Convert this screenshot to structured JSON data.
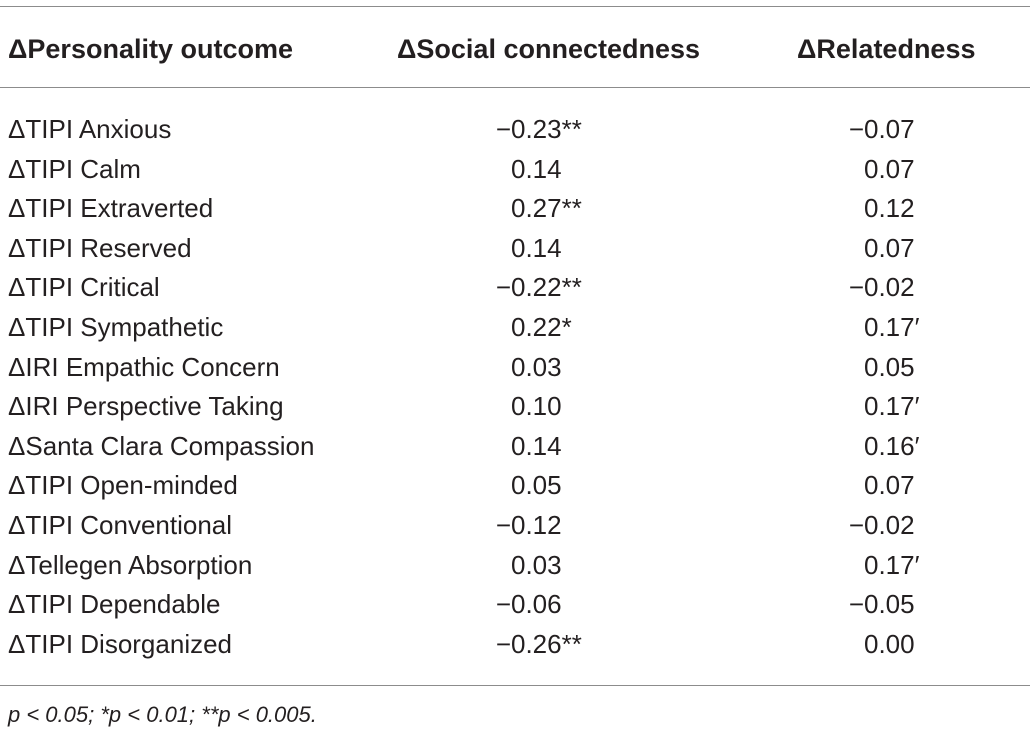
{
  "table": {
    "headers": [
      "ΔPersonality outcome",
      "ΔSocial connectedness",
      "ΔRelatedness"
    ],
    "rows": [
      {
        "outcome": "ΔTIPI Anxious",
        "social": "0.23",
        "social_neg": true,
        "social_mark": "**",
        "relatedness": "0.07",
        "relatedness_neg": true,
        "relatedness_mark": ""
      },
      {
        "outcome": "ΔTIPI Calm",
        "social": "0.14",
        "social_neg": false,
        "social_mark": "",
        "relatedness": "0.07",
        "relatedness_neg": false,
        "relatedness_mark": ""
      },
      {
        "outcome": "ΔTIPI Extraverted",
        "social": "0.27",
        "social_neg": false,
        "social_mark": "**",
        "relatedness": "0.12",
        "relatedness_neg": false,
        "relatedness_mark": ""
      },
      {
        "outcome": "ΔTIPI Reserved",
        "social": "0.14",
        "social_neg": false,
        "social_mark": "",
        "relatedness": "0.07",
        "relatedness_neg": false,
        "relatedness_mark": ""
      },
      {
        "outcome": "ΔTIPI Critical",
        "social": "0.22",
        "social_neg": true,
        "social_mark": "**",
        "relatedness": "0.02",
        "relatedness_neg": true,
        "relatedness_mark": ""
      },
      {
        "outcome": "ΔTIPI Sympathetic",
        "social": "0.22",
        "social_neg": false,
        "social_mark": "*",
        "relatedness": "0.17",
        "relatedness_neg": false,
        "relatedness_mark": "′"
      },
      {
        "outcome": "ΔIRI Empathic Concern",
        "social": "0.03",
        "social_neg": false,
        "social_mark": "",
        "relatedness": "0.05",
        "relatedness_neg": false,
        "relatedness_mark": ""
      },
      {
        "outcome": "ΔIRI Perspective Taking",
        "social": "0.10",
        "social_neg": false,
        "social_mark": "",
        "relatedness": "0.17",
        "relatedness_neg": false,
        "relatedness_mark": "′"
      },
      {
        "outcome": "ΔSanta Clara Compassion",
        "social": "0.14",
        "social_neg": false,
        "social_mark": "",
        "relatedness": "0.16",
        "relatedness_neg": false,
        "relatedness_mark": "′"
      },
      {
        "outcome": "ΔTIPI Open-minded",
        "social": "0.05",
        "social_neg": false,
        "social_mark": "",
        "relatedness": "0.07",
        "relatedness_neg": false,
        "relatedness_mark": ""
      },
      {
        "outcome": "ΔTIPI Conventional",
        "social": "0.12",
        "social_neg": true,
        "social_mark": "",
        "relatedness": "0.02",
        "relatedness_neg": true,
        "relatedness_mark": ""
      },
      {
        "outcome": "ΔTellegen Absorption",
        "social": "0.03",
        "social_neg": false,
        "social_mark": "",
        "relatedness": "0.17",
        "relatedness_neg": false,
        "relatedness_mark": "′"
      },
      {
        "outcome": "ΔTIPI Dependable",
        "social": "0.06",
        "social_neg": true,
        "social_mark": "",
        "relatedness": "0.05",
        "relatedness_neg": true,
        "relatedness_mark": ""
      },
      {
        "outcome": "ΔTIPI Disorganized",
        "social": "0.26",
        "social_neg": true,
        "social_mark": "**",
        "relatedness": "0.00",
        "relatedness_neg": false,
        "relatedness_mark": ""
      }
    ],
    "footnote": "p < 0.05; *p < 0.01; **p < 0.005."
  }
}
